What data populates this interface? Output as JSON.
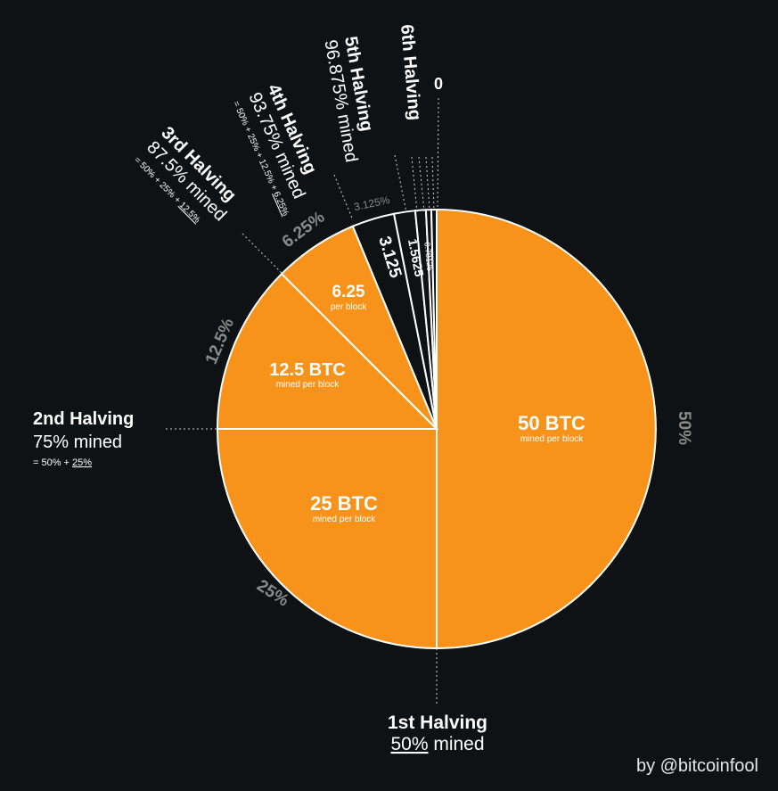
{
  "colors": {
    "background": "#0e1214",
    "orange": "#f7931a",
    "dark_slice": "#0e1214",
    "divider": "#ffffff",
    "muted": "#8a8a8a",
    "text": "#ffffff"
  },
  "chart_data": {
    "type": "pie",
    "start": "12 o'clock, clockwise",
    "slices": [
      {
        "percent": 50,
        "percent_label": "50%",
        "reward": "50 BTC",
        "sub": "mined per block",
        "fill": "orange"
      },
      {
        "percent": 25,
        "percent_label": "25%",
        "reward": "25 BTC",
        "sub": "mined per block",
        "fill": "orange"
      },
      {
        "percent": 12.5,
        "percent_label": "12.5%",
        "reward": "12.5 BTC",
        "sub": "mined per block",
        "fill": "orange"
      },
      {
        "percent": 6.25,
        "percent_label": "6.25%",
        "reward": "6.25",
        "sub": "per block",
        "fill": "orange_dark"
      },
      {
        "percent": 3.125,
        "percent_label": "3.125%",
        "reward": "3.125",
        "sub": "",
        "fill": "dark"
      },
      {
        "percent": 1.5625,
        "percent_label": "",
        "reward": "1.5625",
        "sub": "",
        "fill": "dark"
      },
      {
        "percent": 0.78125,
        "percent_label": "",
        "reward": "0.78125",
        "sub": "",
        "fill": "dark"
      },
      {
        "percent": 0.390625,
        "percent_label": "",
        "reward": "",
        "sub": "",
        "fill": "dark"
      },
      {
        "percent": 0.390625,
        "percent_label": "",
        "reward": "",
        "sub": "",
        "fill": "dark"
      }
    ],
    "halvings": [
      {
        "title": "1st Halving",
        "mined_pct": "50%",
        "mined_word": " mined",
        "formula": ""
      },
      {
        "title": "2nd Halving",
        "mined": "75% mined",
        "formula": "= 50% + ",
        "formula_last": "25%"
      },
      {
        "title": "3rd Halving",
        "mined": "87.5% mined",
        "formula": "= 50% + 25% + ",
        "formula_last": "12.5%"
      },
      {
        "title": "4th Halving",
        "mined": "93.75% mined",
        "formula": "= 50% + 25% + 12.5% + ",
        "formula_last": "6.25%"
      },
      {
        "title": "5th Halving",
        "mined": "96.875% mined",
        "formula": "",
        "formula_last": ""
      },
      {
        "title": "6th Halving",
        "mined": "",
        "formula": "",
        "formula_last": ""
      }
    ],
    "zero_label": "0"
  },
  "credit": "by @bitcoinfool"
}
